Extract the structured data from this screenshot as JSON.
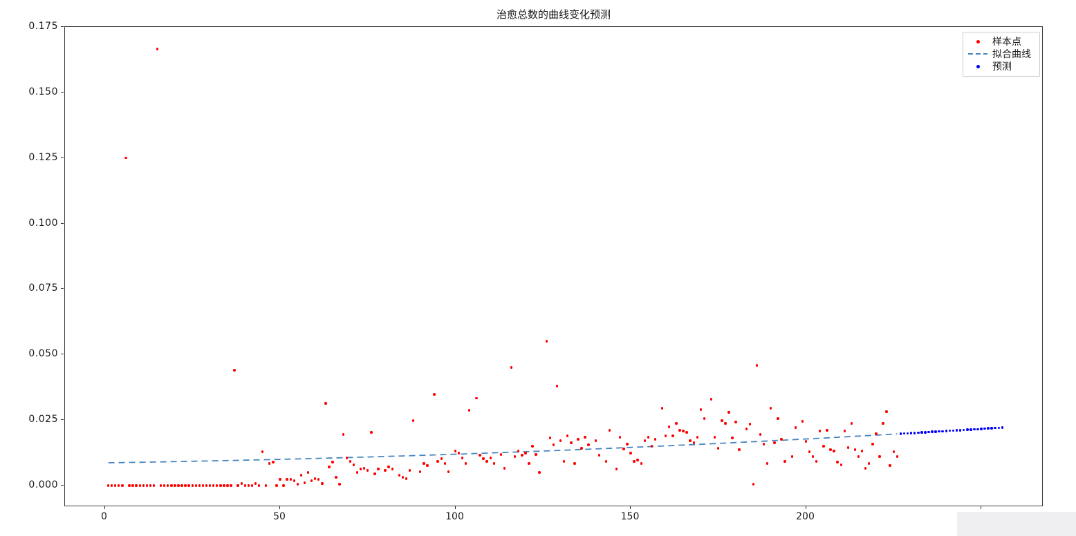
{
  "figure": {
    "title": "治愈总数的曲线变化预测",
    "background": "#ffffff",
    "spine_color": "#3a3a3a"
  },
  "legend": {
    "items": [
      {
        "label": "样本点",
        "marker": "dot-icon",
        "color": "#ff0000"
      },
      {
        "label": "拟合曲线",
        "marker": "dashed-line-icon",
        "color": "#4585c1"
      },
      {
        "label": "预测",
        "marker": "dot-icon",
        "color": "#0000ff"
      }
    ]
  },
  "axes": {
    "x_ticks": [
      {
        "value": 0,
        "label": "0"
      },
      {
        "value": 50,
        "label": "50"
      },
      {
        "value": 100,
        "label": "100"
      },
      {
        "value": 150,
        "label": "150"
      },
      {
        "value": 200,
        "label": "200"
      },
      {
        "value": 250,
        "label": ""
      }
    ],
    "y_ticks": [
      {
        "value": 0.0,
        "label": "0.000"
      },
      {
        "value": 0.025,
        "label": "0.025"
      },
      {
        "value": 0.05,
        "label": "0.050"
      },
      {
        "value": 0.075,
        "label": "0.075"
      },
      {
        "value": 0.1,
        "label": "0.100"
      },
      {
        "value": 0.125,
        "label": "0.125"
      },
      {
        "value": 0.15,
        "label": "0.150"
      },
      {
        "value": 0.175,
        "label": "0.175"
      }
    ]
  },
  "chart_data": {
    "type": "scatter",
    "title": "治愈总数的曲线变化预测",
    "xlabel": "",
    "ylabel": "",
    "xlim": [
      -11.3,
      267.8
    ],
    "ylim": [
      -0.0082,
      0.175
    ],
    "grid": false,
    "legend_position": "upper right",
    "series": [
      {
        "name": "样本点",
        "type": "scatter",
        "color": "#ff0000",
        "marker_size": 3.4,
        "points": [
          [
            1,
            0
          ],
          [
            2,
            0
          ],
          [
            3,
            0
          ],
          [
            4,
            0
          ],
          [
            5,
            0
          ],
          [
            6,
            0.125
          ],
          [
            7,
            0
          ],
          [
            8,
            0
          ],
          [
            9,
            0
          ],
          [
            10,
            0
          ],
          [
            11,
            0
          ],
          [
            12,
            0
          ],
          [
            13,
            0
          ],
          [
            14,
            0
          ],
          [
            15,
            0.1666
          ],
          [
            16,
            0
          ],
          [
            17,
            0
          ],
          [
            18,
            0
          ],
          [
            19,
            0
          ],
          [
            20,
            0
          ],
          [
            21,
            0
          ],
          [
            22,
            0
          ],
          [
            23,
            0
          ],
          [
            24,
            0
          ],
          [
            25,
            0
          ],
          [
            26,
            0
          ],
          [
            27,
            0
          ],
          [
            28,
            0
          ],
          [
            29,
            0
          ],
          [
            30,
            0
          ],
          [
            31,
            0
          ],
          [
            32,
            0
          ],
          [
            33,
            0
          ],
          [
            34,
            0
          ],
          [
            35,
            0
          ],
          [
            36,
            0
          ],
          [
            37,
            0.044
          ],
          [
            38,
            0
          ],
          [
            39,
            0.0008
          ],
          [
            40,
            0
          ],
          [
            41,
            0
          ],
          [
            42,
            0
          ],
          [
            43,
            0.0008
          ],
          [
            44,
            0
          ],
          [
            45,
            0.0129
          ],
          [
            46,
            0
          ],
          [
            47,
            0.0084
          ],
          [
            48,
            0.009
          ],
          [
            49,
            0
          ],
          [
            50,
            0.0024
          ],
          [
            51,
            0
          ],
          [
            52,
            0.0024
          ],
          [
            53,
            0.0024
          ],
          [
            54,
            0.0018
          ],
          [
            55,
            0.0005
          ],
          [
            56,
            0.004
          ],
          [
            57,
            0.0011
          ],
          [
            58,
            0.005
          ],
          [
            59,
            0.0018
          ],
          [
            60,
            0.0026
          ],
          [
            61,
            0.0024
          ],
          [
            62,
            0.0008
          ],
          [
            63,
            0.0314
          ],
          [
            64,
            0.0071
          ],
          [
            65,
            0.009
          ],
          [
            66,
            0.0032
          ],
          [
            67,
            0.0005
          ],
          [
            68,
            0.0195
          ],
          [
            69,
            0.0105
          ],
          [
            70,
            0.0092
          ],
          [
            71,
            0.0079
          ],
          [
            72,
            0.005
          ],
          [
            73,
            0.0063
          ],
          [
            74,
            0.0066
          ],
          [
            75,
            0.0058
          ],
          [
            76,
            0.0203
          ],
          [
            77,
            0.0045
          ],
          [
            78,
            0.0063
          ],
          [
            80,
            0.0058
          ],
          [
            81,
            0.0071
          ],
          [
            82,
            0.0063
          ],
          [
            84,
            0.004
          ],
          [
            85,
            0.0032
          ],
          [
            86,
            0.0026
          ],
          [
            87,
            0.0058
          ],
          [
            88,
            0.0248
          ],
          [
            90,
            0.0053
          ],
          [
            91,
            0.0084
          ],
          [
            92,
            0.0076
          ],
          [
            94,
            0.0348
          ],
          [
            95,
            0.0092
          ],
          [
            96,
            0.0103
          ],
          [
            97,
            0.0084
          ],
          [
            98,
            0.0053
          ],
          [
            100,
            0.0132
          ],
          [
            101,
            0.0124
          ],
          [
            102,
            0.0105
          ],
          [
            103,
            0.0084
          ],
          [
            104,
            0.0287
          ],
          [
            106,
            0.0333
          ],
          [
            107,
            0.0116
          ],
          [
            108,
            0.0103
          ],
          [
            109,
            0.0092
          ],
          [
            110,
            0.0105
          ],
          [
            111,
            0.0084
          ],
          [
            113,
            0.0119
          ],
          [
            114,
            0.0066
          ],
          [
            116,
            0.0451
          ],
          [
            117,
            0.0111
          ],
          [
            118,
            0.0132
          ],
          [
            119,
            0.0116
          ],
          [
            120,
            0.0124
          ],
          [
            121,
            0.0084
          ],
          [
            122,
            0.015
          ],
          [
            123,
            0.0119
          ],
          [
            124,
            0.005
          ],
          [
            126,
            0.0551
          ],
          [
            127,
            0.0182
          ],
          [
            128,
            0.0156
          ],
          [
            129,
            0.038
          ],
          [
            130,
            0.0171
          ],
          [
            131,
            0.0092
          ],
          [
            132,
            0.019
          ],
          [
            133,
            0.0163
          ],
          [
            134,
            0.0084
          ],
          [
            135,
            0.0177
          ],
          [
            136,
            0.0142
          ],
          [
            137,
            0.0185
          ],
          [
            138,
            0.0156
          ],
          [
            140,
            0.0171
          ],
          [
            141,
            0.0116
          ],
          [
            143,
            0.0092
          ],
          [
            144,
            0.0211
          ],
          [
            146,
            0.0063
          ],
          [
            147,
            0.0185
          ],
          [
            148,
            0.014
          ],
          [
            149,
            0.0158
          ],
          [
            150,
            0.0124
          ],
          [
            151,
            0.0092
          ],
          [
            152,
            0.0098
          ],
          [
            153,
            0.0084
          ],
          [
            154,
            0.0171
          ],
          [
            155,
            0.0185
          ],
          [
            156,
            0.015
          ],
          [
            157,
            0.0177
          ],
          [
            159,
            0.0295
          ],
          [
            160,
            0.019
          ],
          [
            161,
            0.0224
          ],
          [
            162,
            0.019
          ],
          [
            163,
            0.0237
          ],
          [
            164,
            0.0211
          ],
          [
            165,
            0.0208
          ],
          [
            166,
            0.0203
          ],
          [
            167,
            0.0171
          ],
          [
            168,
            0.0163
          ],
          [
            169,
            0.0185
          ],
          [
            170,
            0.029
          ],
          [
            171,
            0.0256
          ],
          [
            173,
            0.0329
          ],
          [
            174,
            0.0185
          ],
          [
            175,
            0.0142
          ],
          [
            176,
            0.0248
          ],
          [
            177,
            0.0237
          ],
          [
            178,
            0.0279
          ],
          [
            179,
            0.0182
          ],
          [
            180,
            0.0242
          ],
          [
            181,
            0.0137
          ],
          [
            183,
            0.0216
          ],
          [
            184,
            0.0235
          ],
          [
            185,
            0.0005
          ],
          [
            186,
            0.0459
          ],
          [
            187,
            0.0195
          ],
          [
            188,
            0.0158
          ],
          [
            189,
            0.0084
          ],
          [
            190,
            0.0295
          ],
          [
            191,
            0.0163
          ],
          [
            192,
            0.0256
          ],
          [
            193,
            0.0177
          ],
          [
            194,
            0.0092
          ],
          [
            196,
            0.0111
          ],
          [
            197,
            0.0221
          ],
          [
            199,
            0.0245
          ],
          [
            200,
            0.0169
          ],
          [
            201,
            0.0129
          ],
          [
            202,
            0.0111
          ],
          [
            203,
            0.0092
          ],
          [
            204,
            0.0208
          ],
          [
            205,
            0.015
          ],
          [
            206,
            0.0211
          ],
          [
            207,
            0.0137
          ],
          [
            208,
            0.0132
          ],
          [
            209,
            0.009
          ],
          [
            210,
            0.0079
          ],
          [
            211,
            0.0208
          ],
          [
            212,
            0.0145
          ],
          [
            213,
            0.0237
          ],
          [
            214,
            0.0137
          ],
          [
            215,
            0.0111
          ],
          [
            216,
            0.0132
          ],
          [
            217,
            0.0066
          ],
          [
            218,
            0.0084
          ],
          [
            219,
            0.0158
          ],
          [
            220,
            0.0198
          ],
          [
            221,
            0.0111
          ],
          [
            222,
            0.0237
          ],
          [
            223,
            0.0282
          ],
          [
            224,
            0.0076
          ],
          [
            225,
            0.0129
          ],
          [
            226,
            0.0111
          ]
        ]
      },
      {
        "name": "拟合曲线",
        "type": "line",
        "style": "dashed",
        "color": "#4585c1",
        "line_width": 1.8,
        "curve": {
          "a": 0.008679,
          "b": 2.03e-05,
          "c": 1.26e-07,
          "x_start": 1,
          "x_end": 226
        }
      },
      {
        "name": "预测",
        "type": "scatter",
        "color": "#0000ff",
        "marker_size": 3.6,
        "points": [
          [
            227,
            0.0198
          ],
          [
            228,
            0.0199
          ],
          [
            229,
            0.0199
          ],
          [
            230,
            0.02
          ],
          [
            231,
            0.0201
          ],
          [
            232,
            0.0202
          ],
          [
            233,
            0.0203
          ],
          [
            234,
            0.0203
          ],
          [
            235,
            0.0204
          ],
          [
            236,
            0.0205
          ],
          [
            237,
            0.0206
          ],
          [
            238,
            0.0207
          ],
          [
            239,
            0.0207
          ],
          [
            240,
            0.0208
          ],
          [
            241,
            0.0209
          ],
          [
            242,
            0.021
          ],
          [
            243,
            0.0211
          ],
          [
            244,
            0.0211
          ],
          [
            245,
            0.0212
          ],
          [
            246,
            0.0213
          ],
          [
            247,
            0.0214
          ],
          [
            248,
            0.0215
          ],
          [
            249,
            0.0215
          ],
          [
            250,
            0.0216
          ],
          [
            251,
            0.0217
          ],
          [
            252,
            0.0218
          ],
          [
            253,
            0.0219
          ],
          [
            254,
            0.022
          ],
          [
            255,
            0.022
          ],
          [
            256,
            0.0221
          ]
        ]
      }
    ]
  }
}
